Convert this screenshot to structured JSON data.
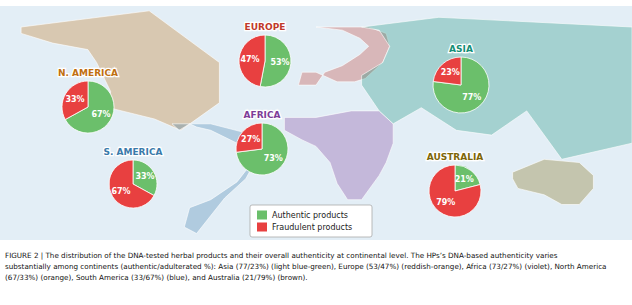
{
  "chart_data": {
    "type": "pie",
    "categories": [
      "Authentic products",
      "Fraudulent products"
    ],
    "colors": [
      "#6BBF6B",
      "#E84040"
    ],
    "data_labels": true,
    "legend": "bottom",
    "series": [
      {
        "name": "N. AMERICA",
        "color": "#C07010",
        "values": [
          67,
          33
        ],
        "value_labels": [
          "67%",
          "33%"
        ]
      },
      {
        "name": "S. AMERICA",
        "color": "#3A7AAA",
        "values": [
          33,
          67
        ],
        "value_labels": [
          "33%",
          "67%"
        ]
      },
      {
        "name": "EUROPE",
        "color": "#C0392B",
        "values": [
          53,
          47
        ],
        "value_labels": [
          "53%",
          "47%"
        ]
      },
      {
        "name": "AFRICA",
        "color": "#7D3C98",
        "values": [
          73,
          27
        ],
        "value_labels": [
          "73%",
          "27%"
        ]
      },
      {
        "name": "ASIA",
        "color": "#148F77",
        "values": [
          77,
          23
        ],
        "value_labels": [
          "77%",
          "23%"
        ]
      },
      {
        "name": "AUSTRALIA",
        "color": "#7D6608",
        "values": [
          21,
          79
        ],
        "value_labels": [
          "21%",
          "79%"
        ]
      }
    ],
    "annotations": [
      "FIGURE 2 | The distribution of the DNA-tested herbal products and their overall authenticity at continental level. The HPs’s DNA-based authenticity varies",
      "substantially among continents (authentic/adulterated %): Asia (77/23%) (light blue-green), Europe (53/47%) (reddish-orange), Africa (73/27%) (violet), North America",
      "(67/33%) (orange), South America (33/67%) (blue), and Australia (21/79%) (brown)."
    ]
  }
}
